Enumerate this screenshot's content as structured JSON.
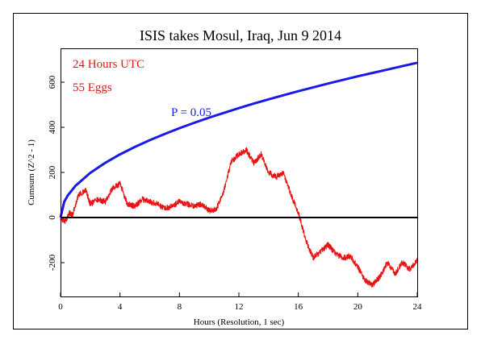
{
  "chart_data": {
    "type": "line",
    "title": "ISIS takes Mosul, Iraq, Jun 9 2014",
    "xlabel": "Hours (Resolution, 1 sec)",
    "ylabel": "Cumsum (Z^2 - 1)",
    "xlim": [
      0,
      24
    ],
    "ylim": [
      -350,
      750
    ],
    "x_ticks": [
      0,
      4,
      8,
      12,
      16,
      20,
      24
    ],
    "y_ticks": [
      -200,
      0,
      200,
      400,
      600
    ],
    "annotations": [
      "24 Hours UTC",
      "55 Eggs",
      "P = 0.05"
    ],
    "series": [
      {
        "name": "P = 0.05",
        "color": "#1a1ae6",
        "x": [
          0,
          0.25,
          0.5,
          1,
          2,
          3,
          4,
          5,
          6,
          7,
          8,
          9,
          10,
          11,
          12,
          13,
          14,
          15,
          16,
          17,
          18,
          19,
          20,
          21,
          22,
          23,
          24
        ],
        "values": [
          0,
          70,
          99,
          140,
          198,
          242,
          280,
          313,
          343,
          370,
          396,
          420,
          443,
          464,
          485,
          505,
          524,
          542,
          560,
          577,
          594,
          610,
          626,
          641,
          656,
          671,
          686
        ]
      },
      {
        "name": "Cumulative deviation",
        "color": "#e61414",
        "x": [
          0,
          0.3,
          0.6,
          0.8,
          1.2,
          1.7,
          2.0,
          2.5,
          3.0,
          3.5,
          4.0,
          4.5,
          5.0,
          5.5,
          6.0,
          6.5,
          7.0,
          7.5,
          8.0,
          8.5,
          9.0,
          9.5,
          10.0,
          10.5,
          11.0,
          11.5,
          12.0,
          12.5,
          13.0,
          13.5,
          14.0,
          14.5,
          15.0,
          15.5,
          16.0,
          16.5,
          17.0,
          17.5,
          18.0,
          18.5,
          19.0,
          19.5,
          20.0,
          20.5,
          21.0,
          21.5,
          22.0,
          22.5,
          23.0,
          23.5,
          24.0
        ],
        "values": [
          0,
          -20,
          20,
          10,
          100,
          120,
          60,
          80,
          70,
          130,
          150,
          60,
          50,
          80,
          70,
          60,
          40,
          50,
          70,
          60,
          50,
          60,
          30,
          40,
          120,
          250,
          280,
          300,
          240,
          280,
          200,
          180,
          200,
          100,
          20,
          -100,
          -180,
          -150,
          -120,
          -160,
          -180,
          -170,
          -220,
          -280,
          -300,
          -260,
          -200,
          -250,
          -200,
          -230,
          -190
        ]
      },
      {
        "name": "Zero line",
        "color": "#000000",
        "x": [
          0,
          24
        ],
        "values": [
          0,
          0
        ]
      }
    ]
  }
}
